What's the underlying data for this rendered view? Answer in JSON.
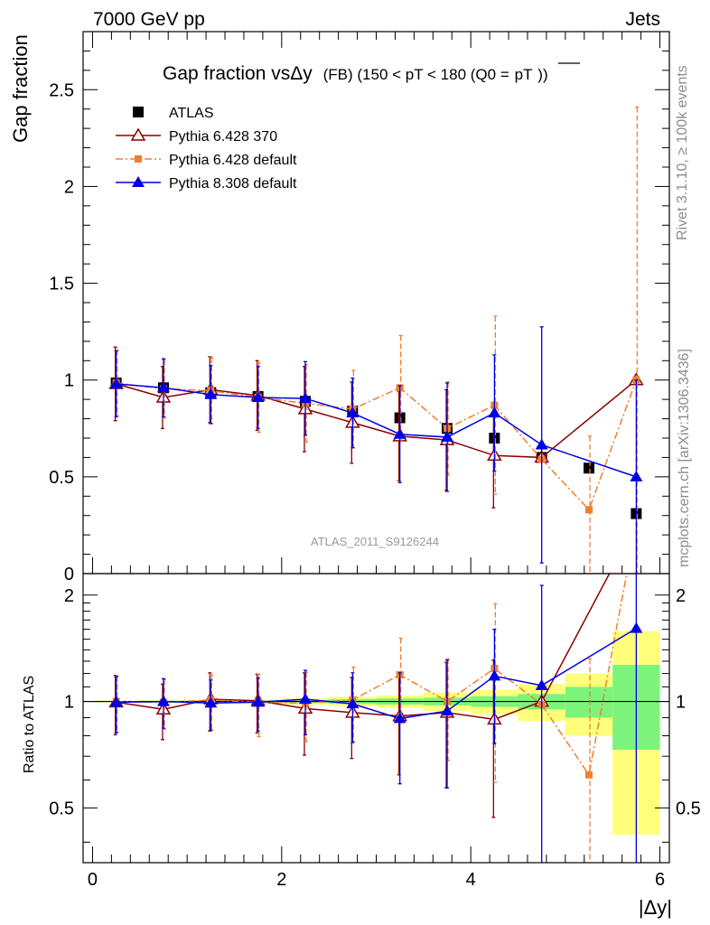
{
  "header": {
    "left": "7000 GeV pp",
    "right": "Jets"
  },
  "side_labels": {
    "rivet": "Rivet 3.1.10, ≥ 100k events",
    "mcplots": "mcplots.cern.ch [arXiv:1306.3436]"
  },
  "chart_data": {
    "type": "scatter",
    "title": {
      "main": "Gap fraction vsΔy",
      "detail": "(FB) (150 < pT < 180 (Q0 =",
      "qsym": "pT",
      "close": "))"
    },
    "ylabel": "Gap fraction",
    "ratio_ylabel": "Ratio to ATLAS",
    "xlabel": "|Δy|",
    "analysis_tag": "ATLAS_2011_S9126244",
    "xlim": [
      -0.1,
      6.1
    ],
    "ylim": [
      0,
      2.8
    ],
    "ratio_ylim": [
      0.35,
      2.3
    ],
    "x_ticks": [
      0,
      2,
      4,
      6
    ],
    "y_ticks": [
      0,
      0.5,
      1,
      1.5,
      2,
      2.5
    ],
    "ratio_ticks": [
      0.5,
      1,
      2
    ],
    "y_tick_labels": [
      "0",
      "0.5",
      "1",
      "1.5",
      "2",
      "2.5"
    ],
    "ratio_tick_labels": [
      "0.5",
      "1",
      "2"
    ],
    "x_tick_labels": [
      "0",
      "2",
      "4",
      "6"
    ],
    "legend_position": "top-left",
    "x": [
      0.25,
      0.75,
      1.25,
      1.75,
      2.25,
      2.75,
      3.25,
      3.75,
      4.25,
      4.75,
      5.25,
      5.75
    ],
    "series": [
      {
        "name": "ATLAS",
        "color": "#000000",
        "marker": "square",
        "values": [
          0.985,
          0.96,
          0.935,
          0.915,
          0.89,
          0.84,
          0.805,
          0.75,
          0.7,
          0.6,
          0.545,
          0.31
        ]
      },
      {
        "name": "Pythia 6.428 370",
        "color": "#8b0000",
        "marker": "open-triangle",
        "values": [
          0.98,
          0.91,
          0.95,
          0.92,
          0.85,
          0.78,
          0.71,
          0.69,
          0.61,
          0.6,
          null,
          1.0
        ],
        "errors": [
          0.19,
          0.16,
          0.17,
          0.18,
          0.22,
          0.21,
          0.23,
          0.26,
          0.27,
          0.0,
          null,
          0.0
        ],
        "ratio": [
          0.995,
          0.95,
          1.015,
          1.005,
          0.955,
          0.93,
          0.91,
          0.93,
          0.89,
          1.0,
          null,
          3.2
        ],
        "ratio_errors": [
          0.19,
          0.17,
          0.19,
          0.19,
          0.25,
          0.24,
          0.29,
          0.36,
          0.42,
          0.0,
          null,
          0.0
        ]
      },
      {
        "name": "Pythia 6.428 default",
        "color": "#f07e30",
        "marker": "filled-square",
        "dashed": true,
        "values": [
          0.985,
          0.955,
          0.945,
          0.91,
          0.88,
          0.85,
          0.96,
          0.75,
          0.87,
          0.59,
          0.33,
          1.0
        ],
        "errors": [
          0.17,
          0.15,
          0.17,
          0.18,
          0.2,
          0.2,
          0.27,
          0.24,
          0.46,
          0.0,
          0.38,
          1.41
        ],
        "ratio": [
          1.0,
          0.995,
          1.01,
          0.995,
          0.99,
          1.01,
          1.19,
          1.0,
          1.24,
          0.98,
          0.62,
          3.2
        ],
        "ratio_errors": [
          0.18,
          0.16,
          0.18,
          0.2,
          0.22,
          0.24,
          0.32,
          0.32,
          0.65,
          0.0,
          0.7,
          0.0
        ]
      },
      {
        "name": "Pythia 8.308 default",
        "color": "#0000e6",
        "marker": "filled-triangle",
        "values": [
          0.98,
          0.96,
          0.925,
          0.91,
          0.905,
          0.83,
          0.72,
          0.705,
          0.83,
          0.665,
          null,
          0.5
        ],
        "errors": [
          0.17,
          0.15,
          0.15,
          0.16,
          0.19,
          0.18,
          0.25,
          0.28,
          0.3,
          0.61,
          null,
          0.5
        ],
        "ratio": [
          0.995,
          1.0,
          0.99,
          0.995,
          1.015,
          0.985,
          0.895,
          0.94,
          1.18,
          1.11,
          null,
          1.61
        ],
        "ratio_errors": [
          0.18,
          0.16,
          0.16,
          0.17,
          0.21,
          0.22,
          0.31,
          0.37,
          0.42,
          1.02,
          null,
          1.61
        ]
      }
    ],
    "data_bands": {
      "x_edges": [
        0.0,
        0.5,
        1.0,
        1.5,
        2.0,
        2.5,
        3.0,
        3.5,
        4.0,
        4.5,
        5.0,
        5.5,
        6.0
      ],
      "stat_halfwidth": [
        0.004,
        0.005,
        0.006,
        0.008,
        0.01,
        0.015,
        0.02,
        0.025,
        0.035,
        0.05,
        0.1,
        0.27
      ],
      "total_halfwidth": [
        0.005,
        0.008,
        0.01,
        0.012,
        0.02,
        0.03,
        0.04,
        0.06,
        0.08,
        0.12,
        0.2,
        0.58
      ]
    }
  }
}
